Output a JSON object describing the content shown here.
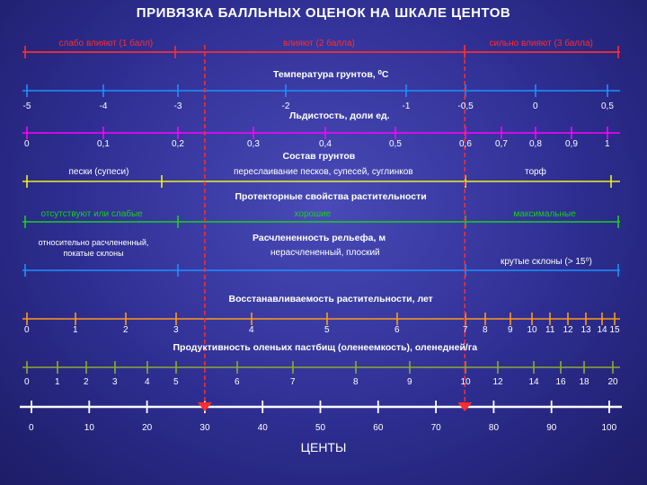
{
  "title": "ПРИВЯЗКА БАЛЛЬНЫХ ОЦЕНОК НА ШКАЛЕ ЦЕНТОВ",
  "colors": {
    "red": "#ff2d2d",
    "blue": "#1e90ff",
    "magenta": "#ff00ff",
    "yellow": "#f0f020",
    "green": "#19d219",
    "orange": "#ff9a1a",
    "olive": "#8faa2e",
    "white": "#ffffff"
  },
  "damage_scale": {
    "labels": [
      "слабо влияют (1 балл)",
      "влияют (2 балла)",
      "сильно влияют (3 балла)"
    ]
  },
  "temperature": {
    "title": "Температура грунтов, ⁰С",
    "ticks": [
      "-5",
      "-4",
      "-3",
      "-2",
      "-1",
      "-0,5",
      "0",
      "0,5"
    ]
  },
  "ice_content": {
    "title": "Льдистость,  доли ед.",
    "ticks": [
      "0",
      "0,1",
      "0,2",
      "0,3",
      "0,4",
      "0,5",
      "0,6",
      "0,7",
      "0,8",
      "0,9",
      "1"
    ]
  },
  "soil": {
    "title": "Состав грунтов",
    "labels": [
      "пески (супеси)",
      "переслаивание песков, супесей, суглинков",
      "торф"
    ]
  },
  "vegetation": {
    "title": "Протекторные свойства растительности",
    "labels": [
      "отсутствуют или слабые",
      "хорошие",
      "максимальные"
    ]
  },
  "relief": {
    "title": "Расчлененность рельефа, м",
    "labels": [
      "относительно расчлененный, покатые склоны",
      "нерасчлененный, плоский",
      "крутые склоны (> 15⁰)"
    ]
  },
  "recovery": {
    "title": "Восстанавливаемость растительности,  лет",
    "ticks": [
      "0",
      "1",
      "2",
      "3",
      "4",
      "5",
      "6",
      "7",
      "8",
      "9",
      "10",
      "11",
      "12",
      "13",
      "14",
      "15"
    ]
  },
  "pasture": {
    "title": "Продуктивность оленьих пастбищ (оленеемкость), оленедней/га",
    "ticks": [
      "0",
      "1",
      "2",
      "3",
      "4",
      "5",
      "6",
      "7",
      "8",
      "9",
      "10",
      "12",
      "14",
      "16",
      "18",
      "20"
    ]
  },
  "cents": {
    "title": "ЦЕНТЫ",
    "ticks": [
      "0",
      "10",
      "20",
      "30",
      "40",
      "50",
      "60",
      "70",
      "80",
      "90",
      "100"
    ],
    "markers": [
      30,
      75
    ]
  }
}
